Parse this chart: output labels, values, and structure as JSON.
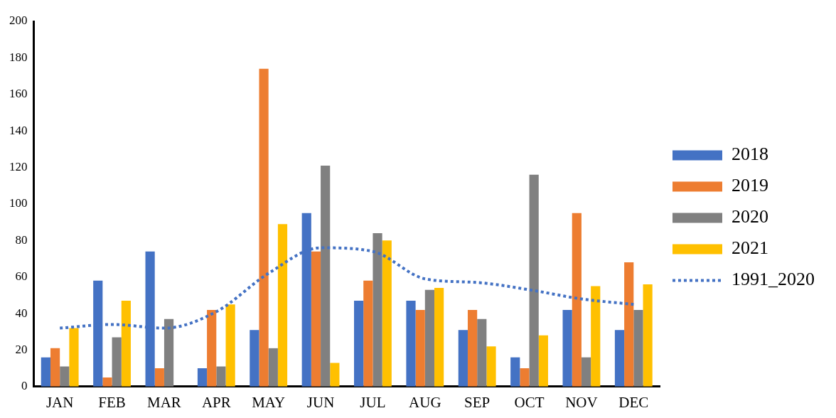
{
  "chart_data": {
    "type": "bar",
    "categories": [
      "JAN",
      "FEB",
      "MAR",
      "APR",
      "MAY",
      "JUN",
      "JUL",
      "AUG",
      "SEP",
      "OCT",
      "NOV",
      "DEC"
    ],
    "series": [
      {
        "name": "2018",
        "color": "#4472c4",
        "values": [
          16,
          58,
          74,
          10,
          31,
          95,
          47,
          47,
          31,
          16,
          42,
          31
        ]
      },
      {
        "name": "2019",
        "color": "#ed7d31",
        "values": [
          21,
          5,
          10,
          42,
          174,
          74,
          58,
          42,
          42,
          10,
          95,
          68
        ]
      },
      {
        "name": "2020",
        "color": "#808080",
        "values": [
          11,
          27,
          37,
          11,
          21,
          121,
          84,
          53,
          37,
          116,
          16,
          42
        ]
      },
      {
        "name": "2021",
        "color": "#ffc000",
        "values": [
          32,
          47,
          0,
          45,
          89,
          13,
          80,
          54,
          22,
          28,
          55,
          56
        ]
      },
      {
        "name": "1991_2020",
        "type": "line",
        "color": "#4472c4",
        "line_style": "dotted",
        "marker": "none",
        "values": [
          32,
          34,
          32,
          41,
          62,
          76,
          74,
          59,
          57,
          53,
          48,
          45
        ]
      }
    ],
    "ylim": [
      0,
      200
    ],
    "yticks": [
      0,
      20,
      40,
      60,
      80,
      100,
      120,
      140,
      160,
      180,
      200
    ],
    "grid": false,
    "legend": "right"
  }
}
